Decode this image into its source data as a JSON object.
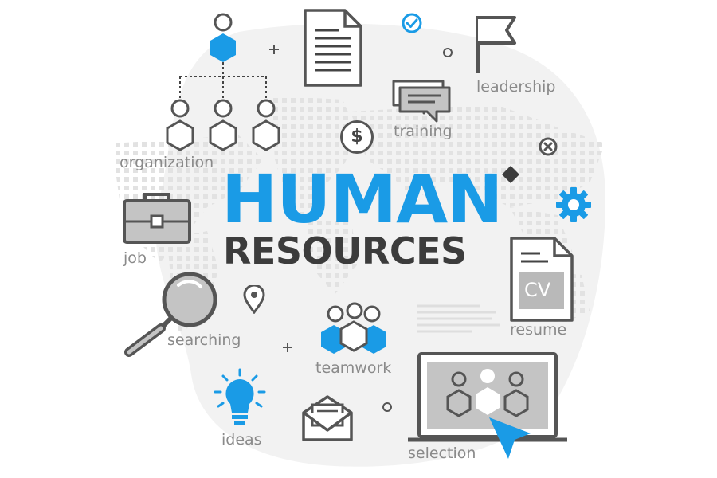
{
  "title": {
    "main": "HUMAN",
    "sub": "RESOURCES"
  },
  "labels": {
    "organization": "organization",
    "training": "training",
    "leadership": "leadership",
    "job": "job",
    "searching": "searching",
    "teamwork": "teamwork",
    "resume": "resume",
    "ideas": "ideas",
    "selection": "selection",
    "cv": "CV",
    "dollar": "$"
  },
  "colors": {
    "accent": "#1a9be6",
    "dark": "#3c3c3c",
    "outline": "#555555",
    "label": "#8a8a8a",
    "fill_gray": "#b9b9b9",
    "bg_blob": "#f1f1f1"
  },
  "icons": [
    "org-chart-icon",
    "document-icon",
    "check-circle-icon",
    "flag-icon",
    "chat-bubbles-icon",
    "dollar-coin-icon",
    "close-circle-icon",
    "diamond-icon",
    "gear-icon",
    "briefcase-icon",
    "cv-document-icon",
    "magnifier-icon",
    "location-pin-icon",
    "teamwork-icon",
    "lightbulb-icon",
    "envelope-icon",
    "laptop-icon",
    "cursor-arrow-icon",
    "plus-icon",
    "ring-icon"
  ]
}
